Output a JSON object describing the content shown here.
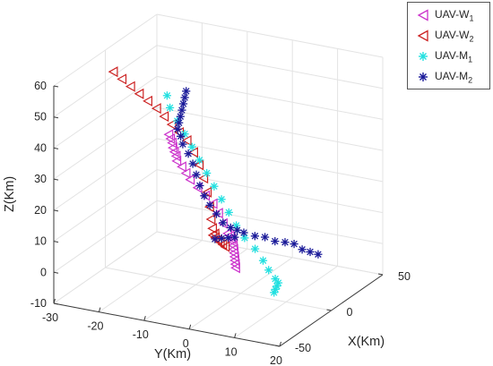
{
  "chart_data": {
    "type": "scatter",
    "title": "",
    "xlabel": "X(Km)",
    "ylabel": "Y(Km)",
    "zlabel": "Z(Km)",
    "xlim": [
      -50,
      50
    ],
    "ylim": [
      -30,
      20
    ],
    "zlim": [
      -10,
      60
    ],
    "x_ticks": [
      "-50",
      "0",
      "50"
    ],
    "y_ticks": [
      "-30",
      "-20",
      "-10",
      "0",
      "10",
      "20"
    ],
    "z_ticks": [
      "-10",
      "0",
      "10",
      "20",
      "30",
      "40",
      "50",
      "60"
    ],
    "grid": true,
    "legend_position": "top-right",
    "series": [
      {
        "name": "UAV-W1",
        "base": "UAV-W",
        "subscript": "1",
        "marker": "triangle-left",
        "color": "#cc33cc",
        "points": [
          [
            -52,
            -4,
            52
          ],
          [
            -46,
            -5,
            49
          ],
          [
            -40,
            -6,
            46
          ],
          [
            -35,
            -7,
            43
          ],
          [
            -29,
            -8,
            40
          ],
          [
            -23,
            -9,
            37
          ],
          [
            -18,
            -10,
            34
          ],
          [
            -13,
            -10,
            31
          ],
          [
            -9,
            -10,
            28
          ],
          [
            -5,
            -10,
            25
          ],
          [
            -2,
            -9,
            22
          ],
          [
            1,
            -8,
            19
          ],
          [
            4,
            -7,
            16
          ],
          [
            5,
            -6,
            13
          ],
          [
            5,
            -5,
            10
          ],
          [
            5,
            -4,
            7
          ],
          [
            3,
            -3,
            7
          ],
          [
            0,
            -2,
            7
          ],
          [
            -3,
            -1,
            7
          ],
          [
            -7,
            0,
            7
          ],
          [
            -11,
            1,
            7
          ],
          [
            -15,
            2,
            7
          ],
          [
            -19,
            3,
            7
          ],
          [
            -23,
            4,
            7
          ],
          [
            -27,
            5,
            7
          ],
          [
            -31,
            6,
            7
          ]
        ]
      },
      {
        "name": "UAV-W2",
        "base": "UAV-W",
        "subscript": "2",
        "marker": "triangle-left",
        "color": "#cc2222",
        "points": [
          [
            -5,
            -27,
            55
          ],
          [
            -1,
            -26,
            52
          ],
          [
            3,
            -25,
            49
          ],
          [
            7,
            -24,
            46
          ],
          [
            11,
            -23,
            43
          ],
          [
            15,
            -22,
            40
          ],
          [
            18,
            -21,
            37
          ],
          [
            21,
            -20,
            34
          ],
          [
            24,
            -19,
            31
          ],
          [
            27,
            -18,
            28
          ],
          [
            29,
            -17,
            24
          ],
          [
            30,
            -16,
            20
          ],
          [
            30,
            -15,
            16
          ],
          [
            29,
            -14,
            12
          ],
          [
            27,
            -13,
            8
          ],
          [
            24,
            -12,
            5
          ],
          [
            21,
            -11,
            3
          ],
          [
            19,
            -10,
            2
          ],
          [
            17,
            -10,
            2
          ],
          [
            15,
            -9,
            2
          ],
          [
            13,
            -8,
            2
          ],
          [
            11,
            -7,
            2
          ],
          [
            9,
            -6,
            2
          ],
          [
            7,
            -5,
            2
          ]
        ]
      },
      {
        "name": "UAV-M1",
        "base": "UAV-M",
        "subscript": "1",
        "marker": "asterisk",
        "color": "#22e0e0",
        "points": [
          [
            38,
            -25,
            38
          ],
          [
            32,
            -23,
            36
          ],
          [
            26,
            -20,
            34
          ],
          [
            20,
            -17,
            32
          ],
          [
            14,
            -14,
            30
          ],
          [
            8,
            -11,
            28
          ],
          [
            2,
            -8,
            26
          ],
          [
            -4,
            -5,
            24
          ],
          [
            -10,
            -2,
            22
          ],
          [
            -16,
            1,
            20
          ],
          [
            -22,
            4,
            18
          ],
          [
            -27,
            7,
            16
          ],
          [
            -30,
            10,
            14
          ],
          [
            -31,
            12,
            11
          ],
          [
            -30,
            13,
            8
          ],
          [
            -28,
            14,
            5
          ],
          [
            -25,
            14,
            3
          ],
          [
            -22,
            13,
            1
          ],
          [
            -19,
            12,
            -1
          ],
          [
            -16,
            11,
            -3
          ]
        ]
      },
      {
        "name": "UAV-M2",
        "base": "UAV-M",
        "subscript": "2",
        "marker": "asterisk",
        "color": "#1a1a99",
        "points": [
          [
            -18,
            -8,
            57
          ],
          [
            -15,
            -9,
            54
          ],
          [
            -12,
            -10,
            51
          ],
          [
            -9,
            -11,
            48
          ],
          [
            -6,
            -12,
            45
          ],
          [
            -3,
            -13,
            42
          ],
          [
            0,
            -14,
            39
          ],
          [
            3,
            -14,
            36
          ],
          [
            5,
            -14,
            33
          ],
          [
            6,
            -13,
            30
          ],
          [
            6,
            -12,
            27
          ],
          [
            5,
            -11,
            24
          ],
          [
            4,
            -10,
            21
          ],
          [
            4,
            -9,
            18
          ],
          [
            5,
            -8,
            15
          ],
          [
            7,
            -7,
            12
          ],
          [
            9,
            -6,
            9
          ],
          [
            12,
            -5,
            7
          ],
          [
            14,
            -4,
            6
          ],
          [
            16,
            -3,
            5
          ],
          [
            18,
            -1,
            4
          ],
          [
            19,
            1,
            4
          ],
          [
            20,
            3,
            3
          ],
          [
            21,
            5,
            3
          ],
          [
            21,
            7,
            3
          ],
          [
            20,
            9,
            2
          ],
          [
            19,
            11,
            2
          ],
          [
            18,
            13,
            2
          ],
          [
            16,
            -5,
            3
          ],
          [
            14,
            -6,
            3
          ],
          [
            12,
            -7,
            3
          ],
          [
            10,
            -8,
            3
          ]
        ]
      }
    ]
  }
}
